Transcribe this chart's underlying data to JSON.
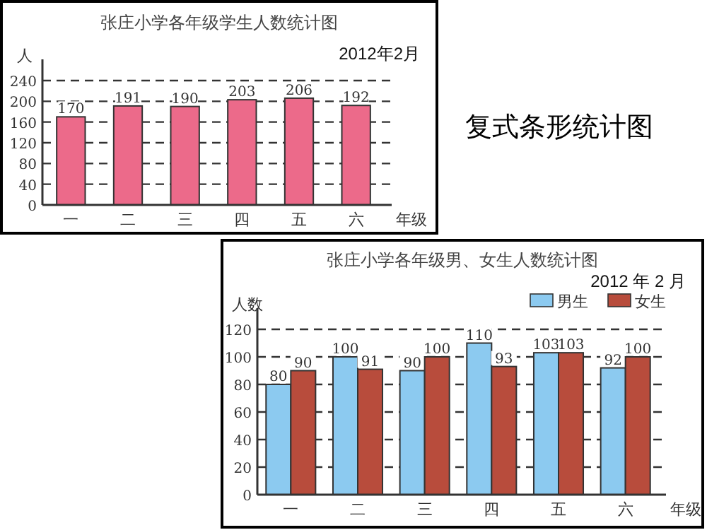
{
  "chart_data": [
    {
      "type": "bar",
      "title": "张庄小学各年级学生人数统计图",
      "subtitle": "2012年2月",
      "ylabel": "人",
      "xlabel": "年级",
      "categories": [
        "一",
        "二",
        "三",
        "四",
        "五",
        "六"
      ],
      "series": [
        {
          "color": "#ec6a8a",
          "values": [
            170,
            191,
            190,
            203,
            206,
            192
          ]
        }
      ],
      "ylim": [
        0,
        240
      ],
      "yticks": [
        0,
        40,
        80,
        120,
        160,
        200,
        240
      ],
      "grid": "y",
      "data_labels": true,
      "legend": false
    },
    {
      "type": "other",
      "title": "复式条形统计图"
    },
    {
      "type": "bar",
      "title": "张庄小学各年级男、女生人数统计图",
      "subtitle": "2012 年 2 月",
      "ylabel": "人数",
      "xlabel": "年级",
      "categories": [
        "一",
        "二",
        "三",
        "四",
        "五",
        "六"
      ],
      "series": [
        {
          "name": "男生",
          "color": "#8ccaf0",
          "values": [
            80,
            100,
            90,
            110,
            103,
            92
          ]
        },
        {
          "name": "女生",
          "color": "#b84c3c",
          "values": [
            90,
            91,
            100,
            93,
            103,
            100
          ]
        }
      ],
      "ylim": [
        0,
        120
      ],
      "yticks": [
        0,
        20,
        40,
        60,
        80,
        100,
        120
      ],
      "grid": "y",
      "data_labels": true,
      "legend": "top right"
    }
  ]
}
